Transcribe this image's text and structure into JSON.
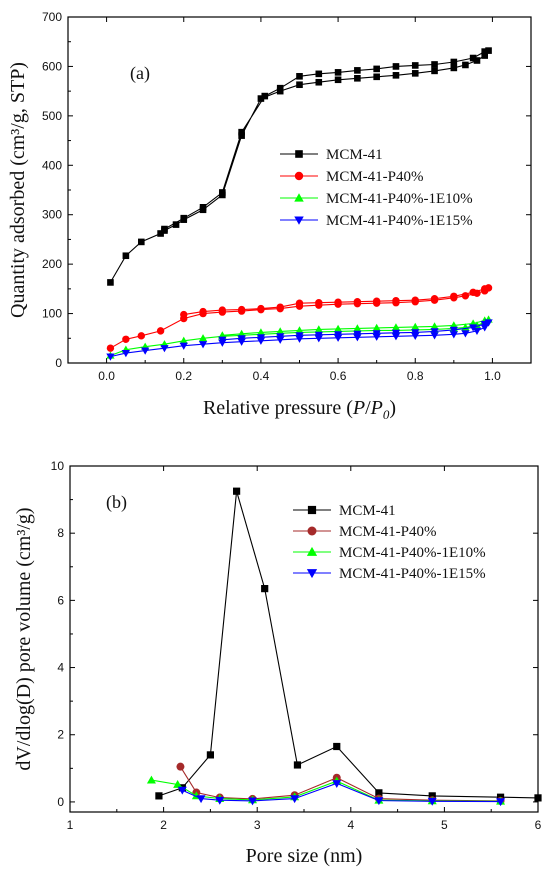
{
  "chart_data": [
    {
      "type": "line",
      "panel_label": "(a)",
      "xlabel": "Relative pressure (P/P0)",
      "ylabel": "Quantity adsorbed (cm³/g, STP)",
      "xlim": [
        -0.1,
        1.1
      ],
      "ylim": [
        0,
        700
      ],
      "xticks": [
        "0.0",
        "0.2",
        "0.4",
        "0.6",
        "0.8",
        "1.0"
      ],
      "yticks": [
        "0",
        "100",
        "200",
        "300",
        "400",
        "500",
        "600",
        "700"
      ],
      "legend_position": "center-right",
      "series": [
        {
          "name": "MCM-41",
          "color": "#000000",
          "marker": "square",
          "x": [
            0.01,
            0.05,
            0.09,
            0.14,
            0.15,
            0.18,
            0.2,
            0.25,
            0.3,
            0.35,
            0.4,
            0.45,
            0.5,
            0.55,
            0.6,
            0.65,
            0.7,
            0.75,
            0.8,
            0.85,
            0.9,
            0.93,
            0.96,
            0.98,
            0.99,
            0.98,
            0.95,
            0.9,
            0.85,
            0.8,
            0.75,
            0.7,
            0.65,
            0.6,
            0.55,
            0.5,
            0.45,
            0.41,
            0.35,
            0.3,
            0.25,
            0.2,
            0.15
          ],
          "y": [
            163,
            217,
            245,
            262,
            268,
            280,
            290,
            310,
            340,
            460,
            535,
            550,
            563,
            568,
            573,
            576,
            579,
            582,
            586,
            591,
            597,
            603,
            612,
            622,
            632,
            630,
            617,
            609,
            604,
            602,
            600,
            595,
            592,
            588,
            585,
            580,
            556,
            540,
            467,
            345,
            315,
            293,
            271
          ]
        },
        {
          "name": "MCM-41-P40%",
          "color": "#ff0000",
          "marker": "circle",
          "x": [
            0.01,
            0.05,
            0.09,
            0.14,
            0.2,
            0.25,
            0.3,
            0.35,
            0.4,
            0.45,
            0.5,
            0.55,
            0.6,
            0.65,
            0.7,
            0.75,
            0.8,
            0.85,
            0.9,
            0.93,
            0.96,
            0.98,
            0.99,
            0.98,
            0.95,
            0.9,
            0.85,
            0.8,
            0.75,
            0.7,
            0.65,
            0.6,
            0.55,
            0.5,
            0.45,
            0.4,
            0.35,
            0.3,
            0.25,
            0.2
          ],
          "y": [
            30,
            48,
            55,
            65,
            90,
            100,
            103,
            105,
            108,
            110,
            115,
            117,
            119,
            120,
            121,
            122,
            124,
            127,
            132,
            136,
            141,
            146,
            152,
            150,
            143,
            135,
            130,
            127,
            126,
            125,
            124,
            123,
            122,
            121,
            113,
            110,
            108,
            107,
            104,
            98
          ]
        },
        {
          "name": "MCM-41-P40%-1E10%",
          "color": "#00ff00",
          "marker": "triangle-up",
          "x": [
            0.01,
            0.05,
            0.1,
            0.15,
            0.2,
            0.25,
            0.3,
            0.35,
            0.4,
            0.45,
            0.5,
            0.55,
            0.6,
            0.65,
            0.7,
            0.75,
            0.8,
            0.85,
            0.9,
            0.93,
            0.96,
            0.98,
            0.99,
            0.98,
            0.95,
            0.9,
            0.85,
            0.8,
            0.75,
            0.7,
            0.65,
            0.6,
            0.55,
            0.5,
            0.45,
            0.4,
            0.35,
            0.3
          ],
          "y": [
            15,
            27,
            33,
            38,
            45,
            50,
            54,
            56,
            58,
            60,
            62,
            63,
            64,
            65,
            66,
            66,
            67,
            68,
            70,
            72,
            76,
            82,
            88,
            86,
            80,
            76,
            74,
            73,
            72,
            71,
            70,
            69,
            68,
            66,
            64,
            62,
            59,
            56
          ]
        },
        {
          "name": "MCM-41-P40%-1E15%",
          "color": "#0000ff",
          "marker": "triangle-down",
          "x": [
            0.01,
            0.05,
            0.1,
            0.15,
            0.2,
            0.25,
            0.3,
            0.35,
            0.4,
            0.45,
            0.5,
            0.55,
            0.6,
            0.65,
            0.7,
            0.75,
            0.8,
            0.85,
            0.9,
            0.93,
            0.96,
            0.98,
            0.99,
            0.98,
            0.95,
            0.9,
            0.85,
            0.8,
            0.75,
            0.7,
            0.65,
            0.6,
            0.55,
            0.5,
            0.45,
            0.4,
            0.35,
            0.3
          ],
          "y": [
            13,
            20,
            25,
            30,
            35,
            38,
            41,
            43,
            45,
            47,
            49,
            50,
            51,
            52,
            53,
            54,
            55,
            56,
            58,
            60,
            65,
            72,
            82,
            79,
            72,
            67,
            64,
            62,
            61,
            60,
            59,
            58,
            57,
            56,
            54,
            52,
            50,
            47
          ]
        }
      ]
    },
    {
      "type": "line",
      "panel_label": "(b)",
      "xlabel": "Pore size (nm)",
      "ylabel": "dV/dlog(D) pore volume (cm³/g)",
      "xlim": [
        1,
        6
      ],
      "ylim": [
        -0.3,
        10
      ],
      "xticks": [
        "1",
        "2",
        "3",
        "4",
        "5",
        "6"
      ],
      "yticks": [
        "0",
        "2",
        "4",
        "6",
        "8",
        "10"
      ],
      "legend_position": "top-right",
      "series": [
        {
          "name": "MCM-41",
          "color": "#000000",
          "marker": "square",
          "x": [
            1.95,
            2.2,
            2.5,
            2.78,
            3.08,
            3.43,
            3.85,
            4.3,
            4.87,
            5.6,
            6.0
          ],
          "y": [
            0.18,
            0.42,
            1.4,
            9.25,
            6.35,
            1.1,
            1.65,
            0.27,
            0.18,
            0.14,
            0.12
          ]
        },
        {
          "name": "MCM-41-P40%",
          "color": "#a52a2a",
          "marker": "circle",
          "x": [
            2.18,
            2.35,
            2.6,
            2.95,
            3.4,
            3.85,
            4.3,
            4.87,
            5.6
          ],
          "y": [
            1.05,
            0.28,
            0.13,
            0.09,
            0.2,
            0.72,
            0.1,
            0.05,
            0.03
          ]
        },
        {
          "name": "MCM-41-P40%-1E10%",
          "color": "#00ff00",
          "marker": "triangle-up",
          "x": [
            1.87,
            2.15,
            2.35,
            2.6,
            2.95,
            3.4,
            3.85,
            4.3,
            4.87,
            5.6
          ],
          "y": [
            0.65,
            0.52,
            0.18,
            0.1,
            0.06,
            0.15,
            0.62,
            0.05,
            0.03,
            0.02
          ]
        },
        {
          "name": "MCM-41-P40%-1E15%",
          "color": "#0000ff",
          "marker": "triangle-down",
          "x": [
            2.2,
            2.4,
            2.6,
            2.95,
            3.4,
            3.85,
            4.3,
            4.87,
            5.6
          ],
          "y": [
            0.35,
            0.1,
            0.05,
            0.03,
            0.1,
            0.55,
            0.04,
            0.02,
            0.01
          ]
        }
      ]
    }
  ]
}
